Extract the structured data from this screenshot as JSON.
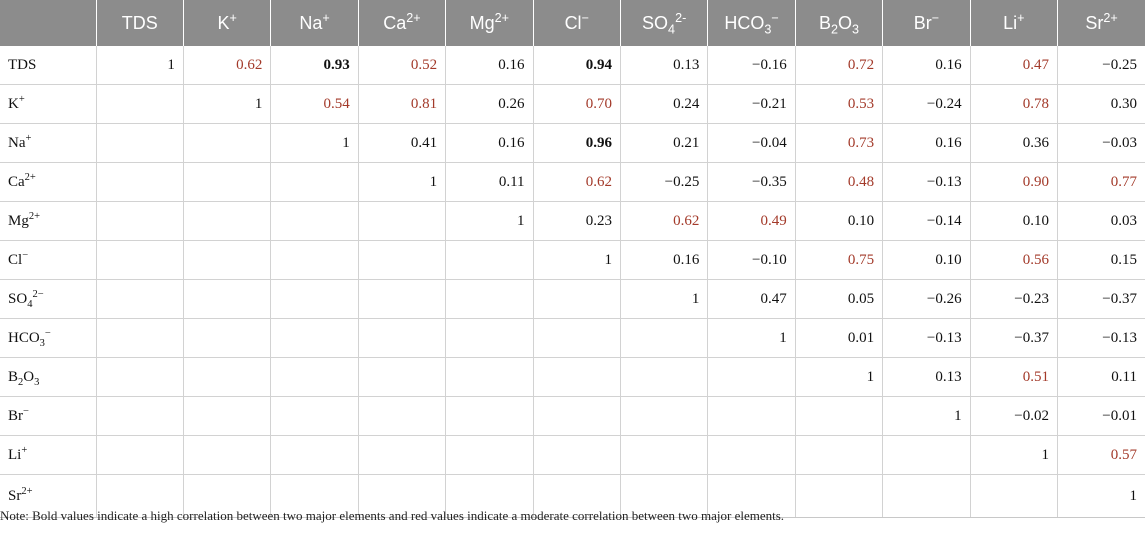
{
  "columns": [
    {
      "base": "TDS"
    },
    {
      "base": "K",
      "sup": "+"
    },
    {
      "base": "Na",
      "sup": "+"
    },
    {
      "base": "Ca",
      "sup": "2+"
    },
    {
      "base": "Mg",
      "sup": "2+"
    },
    {
      "base": "Cl",
      "sup": "−"
    },
    {
      "base": "SO",
      "sub": "4",
      "sup": "2-"
    },
    {
      "base": "HCO",
      "sub": "3",
      "sup": "−"
    },
    {
      "base": "B",
      "sub": "2",
      "base2": "O",
      "sub2": "3"
    },
    {
      "base": "Br",
      "sup": "−"
    },
    {
      "base": "Li",
      "sup": "+"
    },
    {
      "base": "Sr",
      "sup": "2+"
    }
  ],
  "rows": [
    {
      "label": {
        "base": "TDS"
      },
      "cells": [
        {
          "v": "1"
        },
        {
          "v": "0.62",
          "s": "red"
        },
        {
          "v": "0.93",
          "s": "bold"
        },
        {
          "v": "0.52",
          "s": "red"
        },
        {
          "v": "0.16"
        },
        {
          "v": "0.94",
          "s": "bold"
        },
        {
          "v": "0.13"
        },
        {
          "v": "−0.16"
        },
        {
          "v": "0.72",
          "s": "red"
        },
        {
          "v": "0.16"
        },
        {
          "v": "0.47",
          "s": "red"
        },
        {
          "v": "−0.25"
        }
      ]
    },
    {
      "label": {
        "base": "K",
        "sup": "+"
      },
      "cells": [
        {
          "v": ""
        },
        {
          "v": "1"
        },
        {
          "v": "0.54",
          "s": "red"
        },
        {
          "v": "0.81",
          "s": "red"
        },
        {
          "v": "0.26"
        },
        {
          "v": "0.70",
          "s": "red"
        },
        {
          "v": "0.24"
        },
        {
          "v": "−0.21"
        },
        {
          "v": "0.53",
          "s": "red"
        },
        {
          "v": "−0.24"
        },
        {
          "v": "0.78",
          "s": "red"
        },
        {
          "v": "0.30"
        }
      ]
    },
    {
      "label": {
        "base": "Na",
        "sup": "+"
      },
      "cells": [
        {
          "v": ""
        },
        {
          "v": ""
        },
        {
          "v": "1"
        },
        {
          "v": "0.41"
        },
        {
          "v": "0.16"
        },
        {
          "v": "0.96",
          "s": "bold"
        },
        {
          "v": "0.21"
        },
        {
          "v": "−0.04"
        },
        {
          "v": "0.73",
          "s": "red"
        },
        {
          "v": "0.16"
        },
        {
          "v": "0.36"
        },
        {
          "v": "−0.03"
        }
      ]
    },
    {
      "label": {
        "base": "Ca",
        "sup": "2+"
      },
      "cells": [
        {
          "v": ""
        },
        {
          "v": ""
        },
        {
          "v": ""
        },
        {
          "v": "1"
        },
        {
          "v": "0.11"
        },
        {
          "v": "0.62",
          "s": "red"
        },
        {
          "v": "−0.25"
        },
        {
          "v": "−0.35"
        },
        {
          "v": "0.48",
          "s": "red"
        },
        {
          "v": "−0.13"
        },
        {
          "v": "0.90",
          "s": "red"
        },
        {
          "v": "0.77",
          "s": "red"
        }
      ]
    },
    {
      "label": {
        "base": "Mg",
        "sup": "2+"
      },
      "cells": [
        {
          "v": ""
        },
        {
          "v": ""
        },
        {
          "v": ""
        },
        {
          "v": ""
        },
        {
          "v": "1"
        },
        {
          "v": "0.23"
        },
        {
          "v": "0.62",
          "s": "red"
        },
        {
          "v": "0.49",
          "s": "red"
        },
        {
          "v": "0.10"
        },
        {
          "v": "−0.14"
        },
        {
          "v": "0.10"
        },
        {
          "v": "0.03"
        }
      ]
    },
    {
      "label": {
        "base": "Cl",
        "sup": "−"
      },
      "cells": [
        {
          "v": ""
        },
        {
          "v": ""
        },
        {
          "v": ""
        },
        {
          "v": ""
        },
        {
          "v": ""
        },
        {
          "v": "1"
        },
        {
          "v": "0.16"
        },
        {
          "v": "−0.10"
        },
        {
          "v": "0.75",
          "s": "red"
        },
        {
          "v": "0.10"
        },
        {
          "v": "0.56",
          "s": "red"
        },
        {
          "v": "0.15"
        }
      ]
    },
    {
      "label": {
        "base": "SO",
        "sub": "4",
        "sup": "2−"
      },
      "cells": [
        {
          "v": ""
        },
        {
          "v": ""
        },
        {
          "v": ""
        },
        {
          "v": ""
        },
        {
          "v": ""
        },
        {
          "v": ""
        },
        {
          "v": "1"
        },
        {
          "v": "0.47"
        },
        {
          "v": "0.05"
        },
        {
          "v": "−0.26"
        },
        {
          "v": "−0.23"
        },
        {
          "v": "−0.37"
        }
      ]
    },
    {
      "label": {
        "base": "HCO",
        "sub": "3",
        "sup": "−"
      },
      "cells": [
        {
          "v": ""
        },
        {
          "v": ""
        },
        {
          "v": ""
        },
        {
          "v": ""
        },
        {
          "v": ""
        },
        {
          "v": ""
        },
        {
          "v": ""
        },
        {
          "v": "1"
        },
        {
          "v": "0.01"
        },
        {
          "v": "−0.13"
        },
        {
          "v": "−0.37"
        },
        {
          "v": "−0.13"
        }
      ]
    },
    {
      "label": {
        "base": "B",
        "sub": "2",
        "base2": "O",
        "sub2": "3"
      },
      "cells": [
        {
          "v": ""
        },
        {
          "v": ""
        },
        {
          "v": ""
        },
        {
          "v": ""
        },
        {
          "v": ""
        },
        {
          "v": ""
        },
        {
          "v": ""
        },
        {
          "v": ""
        },
        {
          "v": "1"
        },
        {
          "v": "0.13"
        },
        {
          "v": "0.51",
          "s": "red"
        },
        {
          "v": "0.11"
        }
      ]
    },
    {
      "label": {
        "base": "Br",
        "sup": "−"
      },
      "cells": [
        {
          "v": ""
        },
        {
          "v": ""
        },
        {
          "v": ""
        },
        {
          "v": ""
        },
        {
          "v": ""
        },
        {
          "v": ""
        },
        {
          "v": ""
        },
        {
          "v": ""
        },
        {
          "v": ""
        },
        {
          "v": "1"
        },
        {
          "v": "−0.02"
        },
        {
          "v": "−0.01"
        }
      ]
    },
    {
      "label": {
        "base": "Li",
        "sup": "+"
      },
      "cells": [
        {
          "v": ""
        },
        {
          "v": ""
        },
        {
          "v": ""
        },
        {
          "v": ""
        },
        {
          "v": ""
        },
        {
          "v": ""
        },
        {
          "v": ""
        },
        {
          "v": ""
        },
        {
          "v": ""
        },
        {
          "v": ""
        },
        {
          "v": "1"
        },
        {
          "v": "0.57",
          "s": "red"
        }
      ]
    },
    {
      "label": {
        "base": "Sr",
        "sup": "2+"
      },
      "cells": [
        {
          "v": ""
        },
        {
          "v": ""
        },
        {
          "v": ""
        },
        {
          "v": ""
        },
        {
          "v": ""
        },
        {
          "v": ""
        },
        {
          "v": ""
        },
        {
          "v": ""
        },
        {
          "v": ""
        },
        {
          "v": ""
        },
        {
          "v": ""
        },
        {
          "v": "1"
        }
      ]
    }
  ],
  "note": "Note: Bold values indicate a high correlation between two major elements and red values indicate a moderate correlation between two major elements."
}
